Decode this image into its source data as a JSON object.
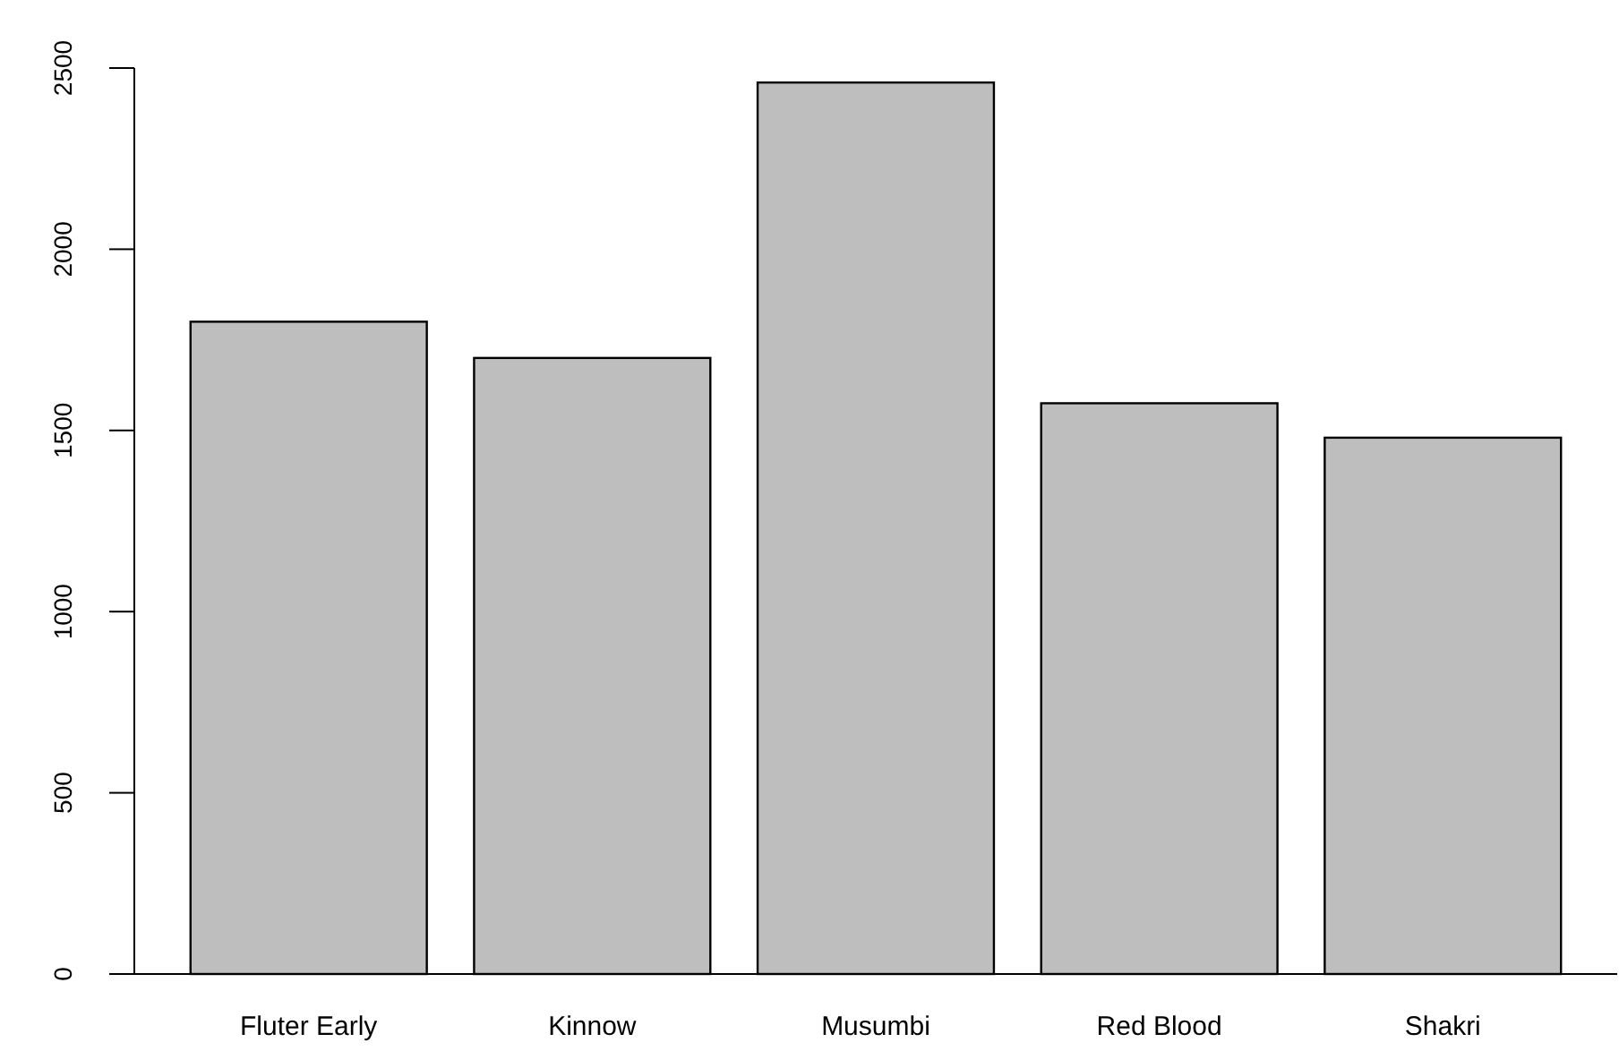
{
  "chart_data": {
    "type": "bar",
    "categories": [
      "Fluter Early",
      "Kinnow",
      "Musumbi",
      "Red Blood",
      "Shakri"
    ],
    "values": [
      1800,
      1700,
      2460,
      1575,
      1480
    ],
    "color": "#bebebe",
    "ylim": [
      0,
      2500
    ],
    "yticks": [
      0,
      500,
      1000,
      1500,
      2000,
      2500
    ],
    "grid": false
  }
}
